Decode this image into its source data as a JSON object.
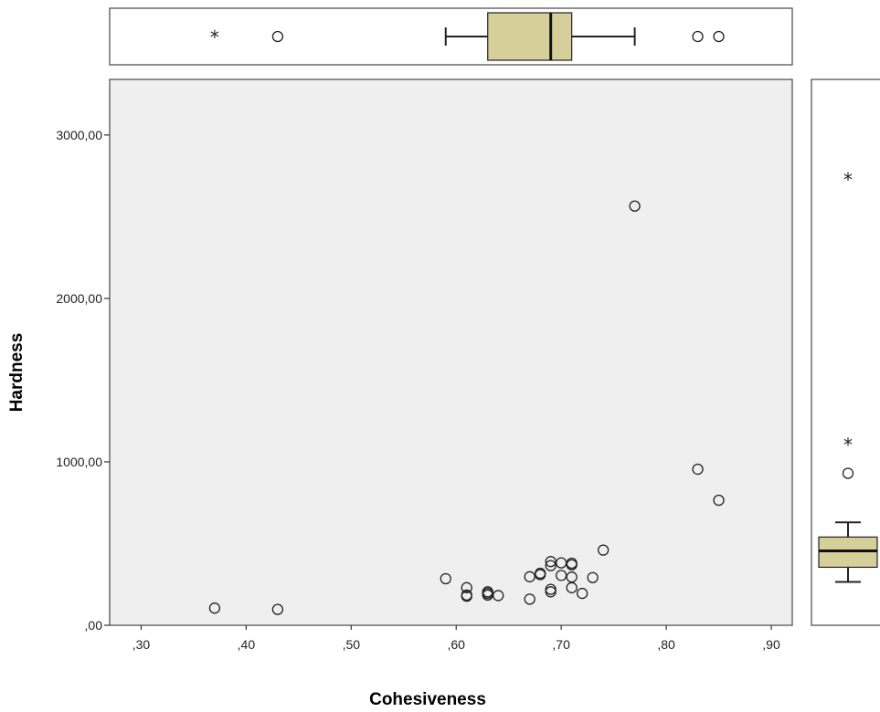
{
  "chart_data": {
    "type": "scatter",
    "xlabel": "Cohesiveness",
    "ylabel": "Hardness",
    "xlim": [
      0.27,
      0.92
    ],
    "ylim": [
      0,
      3000
    ],
    "x_ticks": [
      0.3,
      0.4,
      0.5,
      0.6,
      0.7,
      0.8,
      0.9
    ],
    "x_tick_labels": [
      ",30",
      ",40",
      ",50",
      ",60",
      ",70",
      ",80",
      ",90"
    ],
    "y_ticks": [
      0,
      1000,
      2000,
      3000
    ],
    "y_tick_labels": [
      ",00",
      "1000,00",
      "2000,00",
      "3000,00"
    ],
    "grid": false,
    "plot_background": "#efefef",
    "box_fill": "#d6cf9a",
    "points": [
      {
        "x": 0.37,
        "y": 105
      },
      {
        "x": 0.43,
        "y": 97
      },
      {
        "x": 0.59,
        "y": 285
      },
      {
        "x": 0.61,
        "y": 230
      },
      {
        "x": 0.61,
        "y": 185
      },
      {
        "x": 0.61,
        "y": 178
      },
      {
        "x": 0.63,
        "y": 205
      },
      {
        "x": 0.63,
        "y": 195
      },
      {
        "x": 0.63,
        "y": 185
      },
      {
        "x": 0.64,
        "y": 182
      },
      {
        "x": 0.67,
        "y": 160
      },
      {
        "x": 0.67,
        "y": 297
      },
      {
        "x": 0.68,
        "y": 318
      },
      {
        "x": 0.68,
        "y": 310
      },
      {
        "x": 0.69,
        "y": 390
      },
      {
        "x": 0.69,
        "y": 365
      },
      {
        "x": 0.69,
        "y": 220
      },
      {
        "x": 0.69,
        "y": 205
      },
      {
        "x": 0.7,
        "y": 382
      },
      {
        "x": 0.7,
        "y": 305
      },
      {
        "x": 0.71,
        "y": 380
      },
      {
        "x": 0.71,
        "y": 370
      },
      {
        "x": 0.71,
        "y": 295
      },
      {
        "x": 0.71,
        "y": 230
      },
      {
        "x": 0.72,
        "y": 195
      },
      {
        "x": 0.73,
        "y": 292
      },
      {
        "x": 0.74,
        "y": 460
      },
      {
        "x": 0.77,
        "y": 2565
      },
      {
        "x": 0.83,
        "y": 955
      },
      {
        "x": 0.85,
        "y": 765
      }
    ],
    "x_boxplot": {
      "whisker_low": 0.59,
      "q1": 0.63,
      "median": 0.69,
      "q3": 0.71,
      "whisker_high": 0.77,
      "outliers": [
        0.43,
        0.83,
        0.85
      ],
      "extremes": [
        0.37
      ]
    },
    "y_boxplot": {
      "whisker_low": 265,
      "q1": 355,
      "median": 455,
      "q3": 540,
      "whisker_high": 630,
      "outliers": [
        930
      ],
      "extremes": [
        1110,
        2730
      ]
    }
  }
}
